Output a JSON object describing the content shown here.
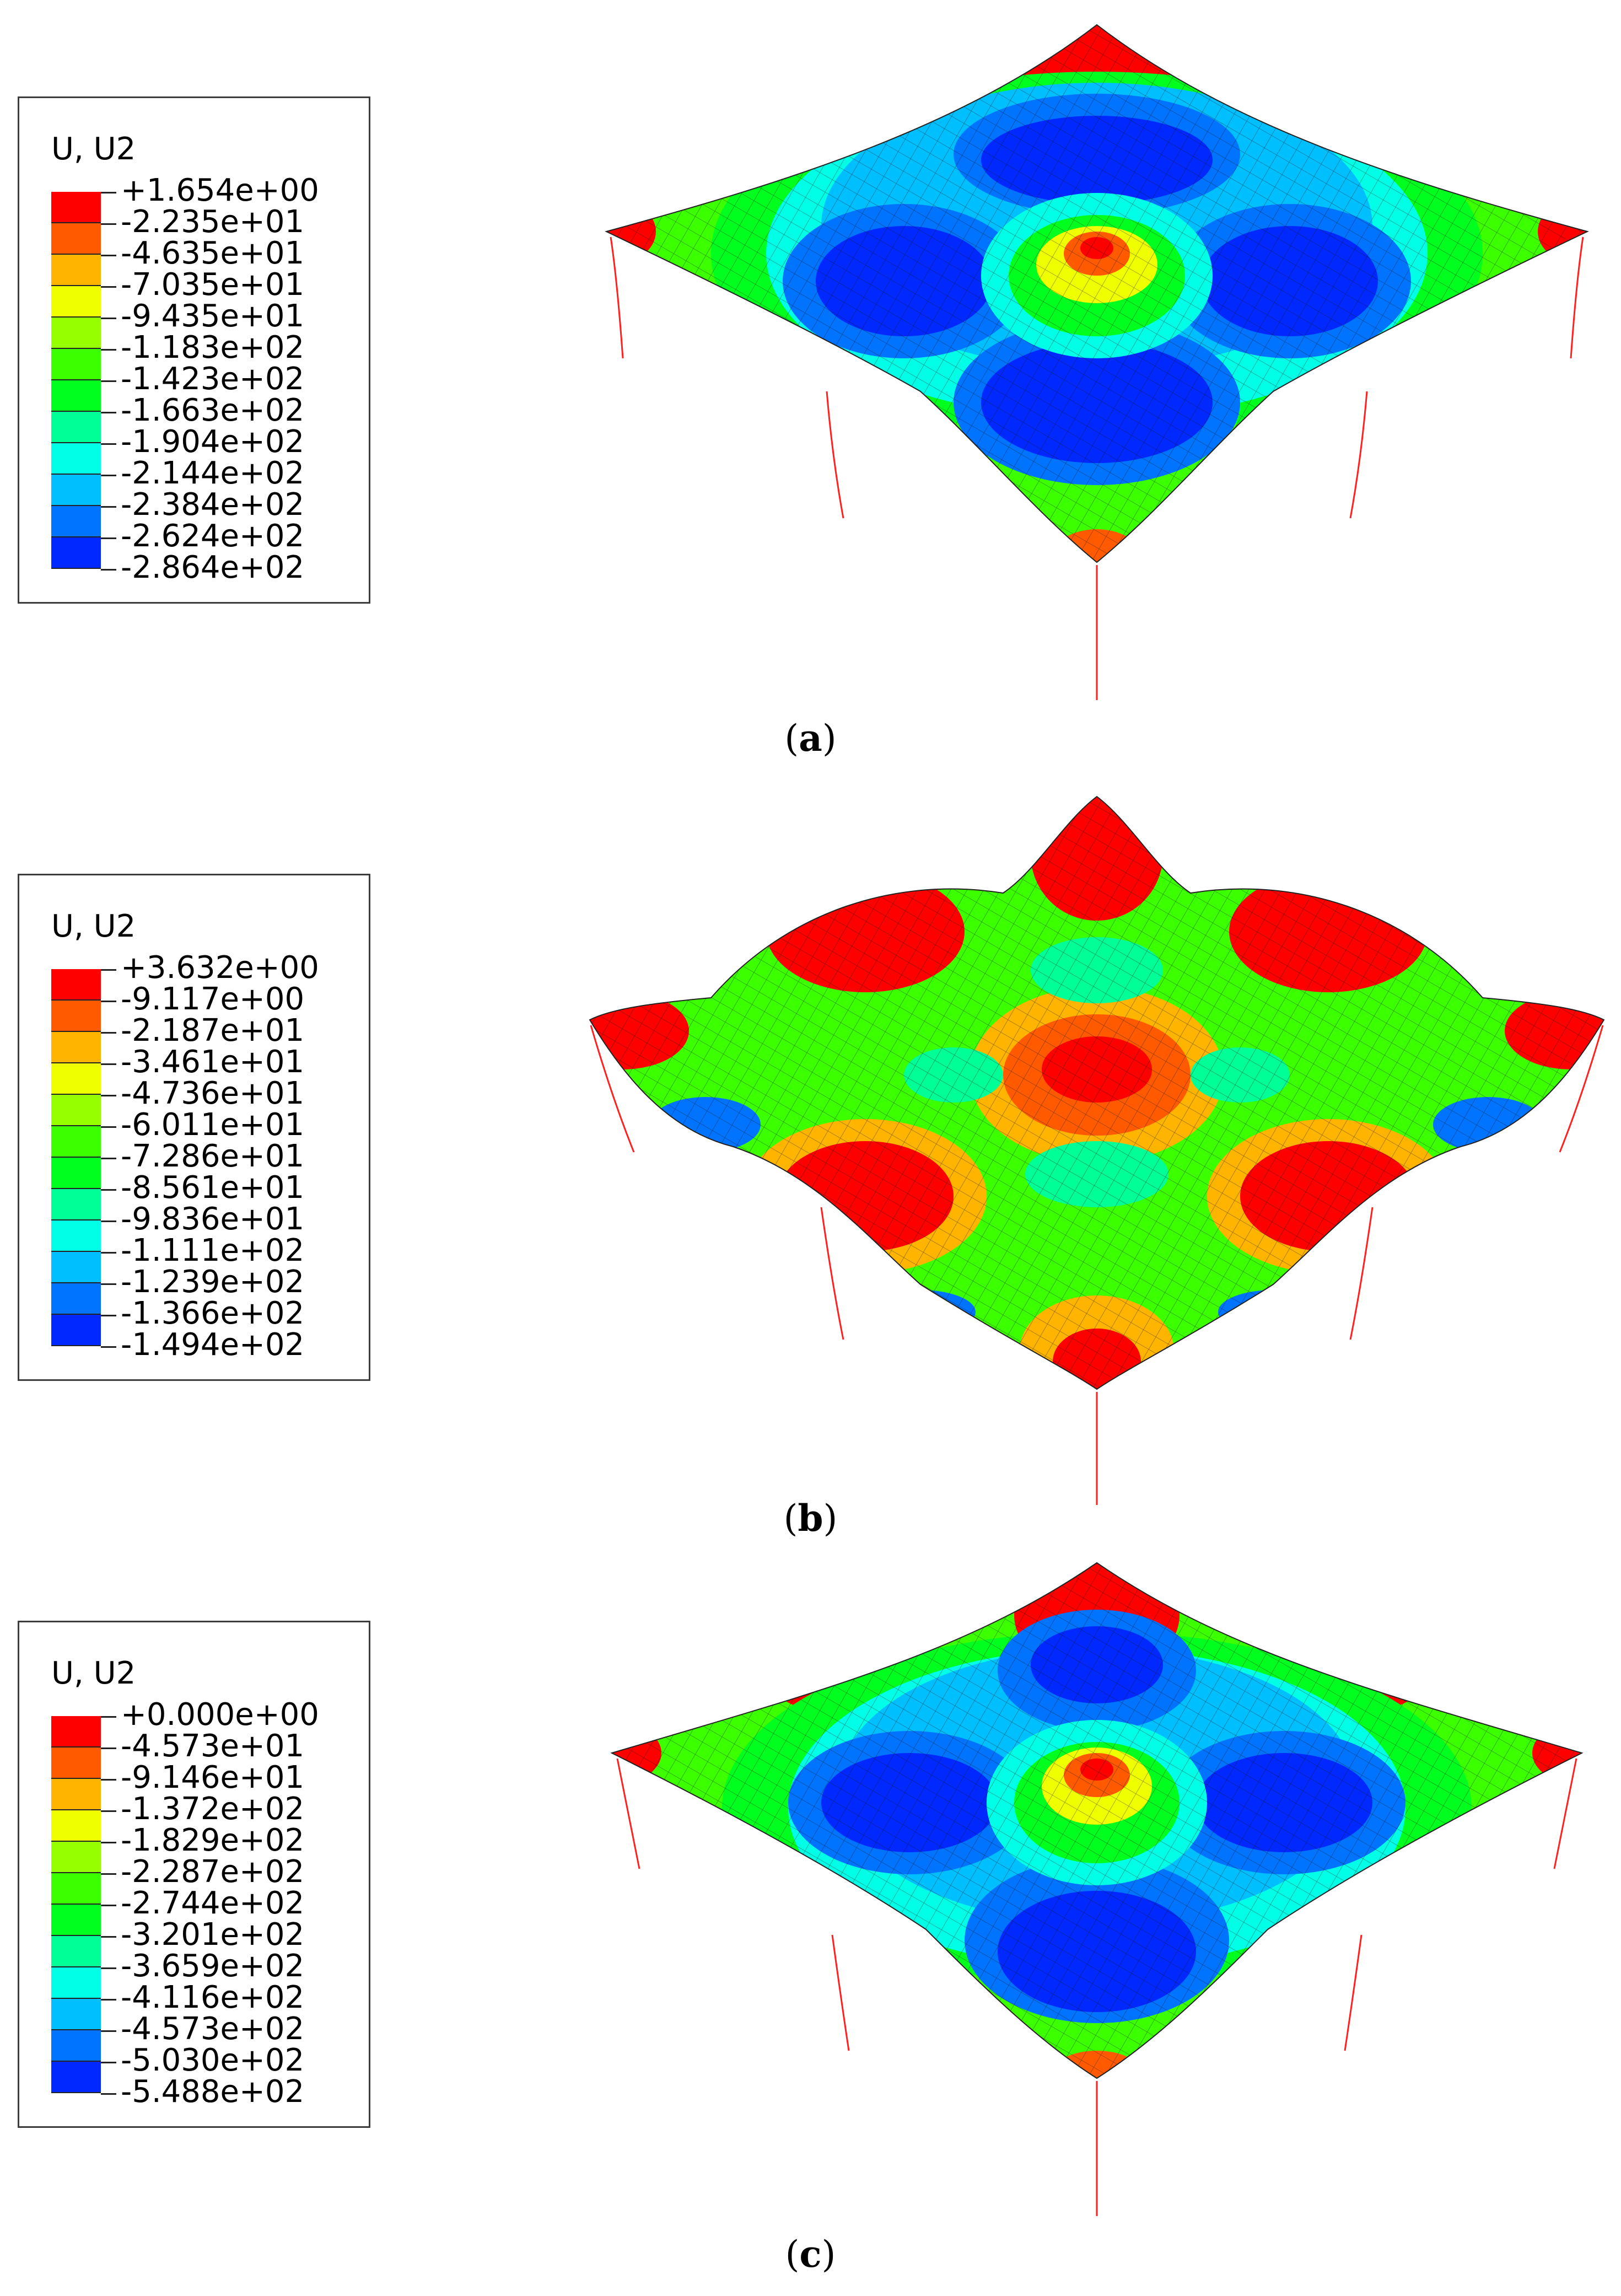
{
  "panels": [
    {
      "id": "a",
      "caption_letter": "a",
      "legend": {
        "title": "U, U2",
        "levels": [
          "+1.654e+00",
          "-2.235e+01",
          "-4.635e+01",
          "-7.035e+01",
          "-9.435e+01",
          "-1.183e+02",
          "-1.423e+02",
          "-1.663e+02",
          "-1.904e+02",
          "-2.144e+02",
          "-2.384e+02",
          "-2.624e+02",
          "-2.864e+02"
        ]
      }
    },
    {
      "id": "b",
      "caption_letter": "b",
      "legend": {
        "title": "U, U2",
        "levels": [
          "+3.632e+00",
          "-9.117e+00",
          "-2.187e+01",
          "-3.461e+01",
          "-4.736e+01",
          "-6.011e+01",
          "-7.286e+01",
          "-8.561e+01",
          "-9.836e+01",
          "-1.111e+02",
          "-1.239e+02",
          "-1.366e+02",
          "-1.494e+02"
        ]
      }
    },
    {
      "id": "c",
      "caption_letter": "c",
      "legend": {
        "title": "U, U2",
        "levels": [
          "+0.000e+00",
          "-4.573e+01",
          "-9.146e+01",
          "-1.372e+02",
          "-1.829e+02",
          "-2.287e+02",
          "-2.744e+02",
          "-3.201e+02",
          "-3.659e+02",
          "-4.116e+02",
          "-4.573e+02",
          "-5.030e+02",
          "-5.488e+02"
        ]
      }
    }
  ],
  "colormap": [
    "#ff0000",
    "#ff5a00",
    "#ffb400",
    "#f0ff00",
    "#96ff00",
    "#3cff00",
    "#00ff1e",
    "#00ff96",
    "#00ffe6",
    "#00bfff",
    "#0073ff",
    "#0028ff"
  ],
  "column_color": "#ff2020",
  "mesh_color": "#1a1a1a"
}
